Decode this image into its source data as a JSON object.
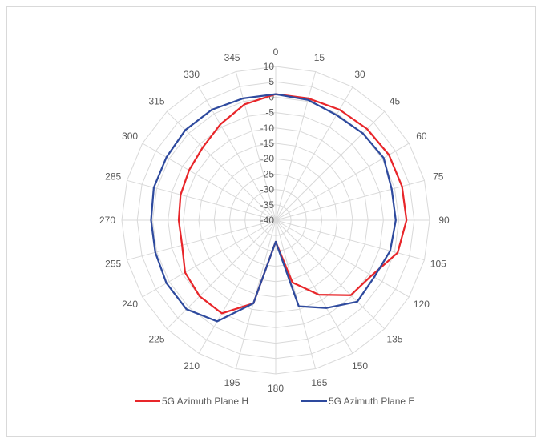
{
  "chart_data": {
    "type": "radar",
    "title": "",
    "categories": [
      "0",
      "15",
      "30",
      "45",
      "60",
      "75",
      "90",
      "105",
      "120",
      "135",
      "150",
      "165",
      "180",
      "195",
      "210",
      "225",
      "240",
      "255",
      "270",
      "285",
      "300",
      "315",
      "330",
      "345"
    ],
    "r_ticks": [
      "10",
      "5",
      "0",
      "-5",
      "-10",
      "-15",
      "-20",
      "-25",
      "-30",
      "-35",
      "-40"
    ],
    "r_range": [
      -40,
      10
    ],
    "grid": true,
    "legend_position": "bottom",
    "series": [
      {
        "name": "5G Azimuth Plane H",
        "color": "#e8262a",
        "values": [
          1,
          1,
          1.5,
          2,
          2.5,
          2.5,
          2.5,
          1,
          -4,
          -5.5,
          -12,
          -19,
          -33,
          -12,
          -5,
          -5,
          -6,
          -8.5,
          -8.5,
          -8,
          -7.5,
          -6.5,
          -4,
          -1
        ]
      },
      {
        "name": "5G Azimuth Plane E",
        "color": "#2e4a9e",
        "values": [
          1,
          0.5,
          -0.5,
          0,
          0.5,
          -1,
          -1,
          -1.5,
          -3,
          -2.5,
          -7,
          -11,
          -33,
          -12,
          -2,
          1,
          1,
          0.5,
          0.5,
          1,
          1,
          1.5,
          1.5,
          1
        ]
      }
    ]
  }
}
